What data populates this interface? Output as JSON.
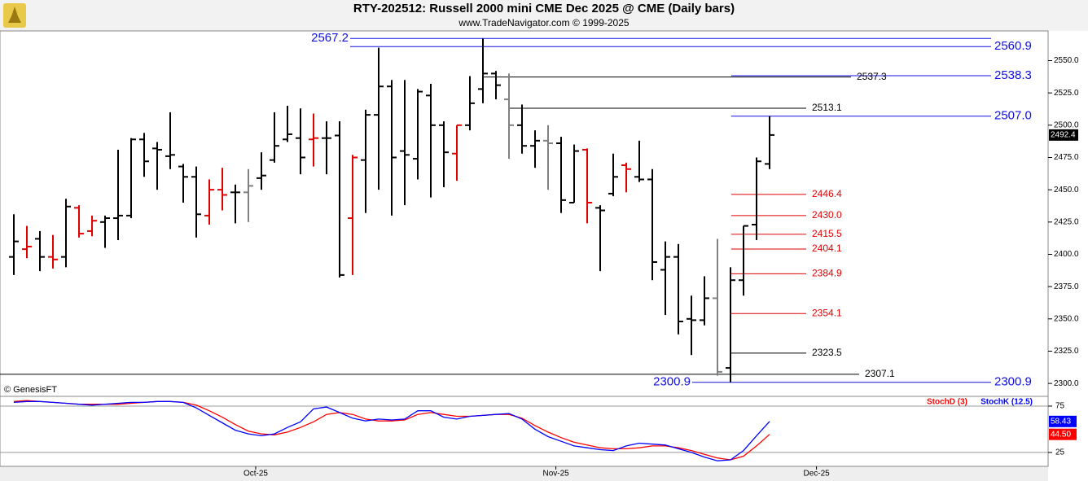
{
  "chart_data": [
    {
      "type": "ohlc",
      "title": "RTY-202512:  Russell 2000 mini CME Dec 2025 @ CME  (Daily bars)",
      "subtitle": "www.TradeNavigator.com © 1999-2025",
      "watermark": "© GenesisFT",
      "open": [
        2398,
        2404,
        2412,
        2398,
        2398,
        2436,
        2418,
        2425,
        2428,
        2430,
        2489,
        2482,
        2476,
        2468,
        2460,
        2430,
        2450,
        2448,
        2448,
        2459,
        2473,
        2489,
        2490,
        2489,
        2490,
        2492,
        2428,
        2473,
        2508,
        2530,
        2480,
        2474,
        2523,
        2500,
        2478,
        2500,
        2528,
        2540,
        2520,
        2500,
        2484,
        2488,
        2486,
        2440,
        2481,
        2436,
        2447,
        2469,
        2460,
        2458,
        2388,
        2398,
        2350,
        2349,
        2366,
        2312,
        2380,
        2423,
        2470
      ],
      "high": [
        2431,
        2422,
        2418,
        2415,
        2443,
        2438,
        2430,
        2430,
        2481,
        2490,
        2494,
        2487,
        2510,
        2470,
        2468,
        2458,
        2467,
        2454,
        2466,
        2479,
        2510,
        2515,
        2513,
        2509,
        2503,
        2503,
        2477,
        2512,
        2560,
        2535,
        2535,
        2528,
        2532,
        2503,
        2500,
        2538,
        2567,
        2542,
        2540,
        2516,
        2496,
        2500,
        2491,
        2485,
        2482,
        2438,
        2478,
        2471,
        2488,
        2466,
        2410,
        2408,
        2368,
        2383,
        2412,
        2390,
        2422,
        2475,
        2507
      ],
      "low": [
        2384,
        2397,
        2387,
        2389,
        2390,
        2413,
        2414,
        2405,
        2411,
        2428,
        2460,
        2450,
        2466,
        2440,
        2413,
        2423,
        2434,
        2424,
        2425,
        2450,
        2471,
        2487,
        2462,
        2468,
        2462,
        2382,
        2384,
        2432,
        2450,
        2430,
        2438,
        2458,
        2444,
        2452,
        2457,
        2496,
        2517,
        2520,
        2474,
        2478,
        2467,
        2450,
        2432,
        2440,
        2424,
        2387,
        2445,
        2448,
        2456,
        2380,
        2353,
        2338,
        2322,
        2345,
        2306,
        2300.9,
        2368,
        2411,
        2466
      ],
      "close": [
        2410,
        2406,
        2398,
        2396,
        2437,
        2416,
        2426,
        2428,
        2430,
        2489,
        2472,
        2481,
        2477,
        2460,
        2431,
        2450,
        2446,
        2448,
        2453,
        2461,
        2484,
        2493,
        2475,
        2490,
        2490,
        2384,
        2475,
        2508,
        2530,
        2475,
        2477,
        2526,
        2500,
        2479,
        2500,
        2517,
        2540,
        2531,
        2500,
        2484,
        2488,
        2486,
        2442,
        2480,
        2440,
        2434,
        2460,
        2466,
        2458,
        2394,
        2398,
        2348,
        2349,
        2366,
        2309,
        2380,
        2422,
        2472,
        2492.4
      ],
      "colors": [
        "#000000",
        "#e00000",
        "#000000",
        "#e00000",
        "#000000",
        "#e00000",
        "#e00000",
        "#000000",
        "#000000",
        "#000000",
        "#000000",
        "#000000",
        "#000000",
        "#000000",
        "#000000",
        "#e00000",
        "#e00000",
        "#000000",
        "#808080",
        "#000000",
        "#000000",
        "#000000",
        "#000000",
        "#e00000",
        "#000000",
        "#000000",
        "#e00000",
        "#000000",
        "#000000",
        "#000000",
        "#000000",
        "#000000",
        "#000000",
        "#000000",
        "#e00000",
        "#000000",
        "#000000",
        "#000000",
        "#808080",
        "#000000",
        "#000000",
        "#808080",
        "#000000",
        "#000000",
        "#e00000",
        "#000000",
        "#000000",
        "#e00000",
        "#000000",
        "#000000",
        "#000000",
        "#000000",
        "#000000",
        "#000000",
        "#808080",
        "#000000",
        "#000000",
        "#000000",
        "#000000"
      ],
      "levels": [
        {
          "value": 2567.2,
          "label": "2567.2",
          "color": "#1010e0"
        },
        {
          "value": 2560.9,
          "label": "2560.9",
          "color": "#1010e0"
        },
        {
          "value": 2538.3,
          "label": "2538.3",
          "color": "#1010e0"
        },
        {
          "value": 2537.3,
          "label": "2537.3",
          "color": "#000000"
        },
        {
          "value": 2513.1,
          "label": "2513.1",
          "color": "#000000"
        },
        {
          "value": 2507,
          "label": "2507.0",
          "color": "#1010e0"
        },
        {
          "value": 2446.4,
          "label": "2446.4",
          "color": "#e00000"
        },
        {
          "value": 2430,
          "label": "2430.0",
          "color": "#e00000"
        },
        {
          "value": 2415.5,
          "label": "2415.5",
          "color": "#e00000"
        },
        {
          "value": 2404.1,
          "label": "2404.1",
          "color": "#e00000"
        },
        {
          "value": 2384.9,
          "label": "2384.9",
          "color": "#e00000"
        },
        {
          "value": 2354.1,
          "label": "2354.1",
          "color": "#e00000"
        },
        {
          "value": 2323.5,
          "label": "2323.5",
          "color": "#000000"
        },
        {
          "value": 2307.1,
          "label": "2307.1",
          "color": "#000000"
        },
        {
          "value": 2300.9,
          "label": "2300.9",
          "color": "#1010e0"
        }
      ],
      "xlim": [
        -1.0625,
        79.375
      ],
      "xticks": [
        {
          "value": 18.56,
          "label": "Oct-25"
        },
        {
          "value": 41.6,
          "label": "Nov-25"
        },
        {
          "value": 61.6,
          "label": "Dec-25"
        }
      ],
      "ylim": [
        2290,
        2573
      ],
      "yticks": [
        {
          "value": 2300,
          "label": "2300.0"
        },
        {
          "value": 2325,
          "label": "2325.0"
        },
        {
          "value": 2350,
          "label": "2350.0"
        },
        {
          "value": 2375,
          "label": "2375.0"
        },
        {
          "value": 2400,
          "label": "2400.0"
        },
        {
          "value": 2425,
          "label": "2425.0"
        },
        {
          "value": 2450,
          "label": "2450.0"
        },
        {
          "value": 2475,
          "label": "2475.0"
        },
        {
          "value": 2500,
          "label": "2500.0"
        },
        {
          "value": 2525,
          "label": "2525.0"
        },
        {
          "value": 2550,
          "label": "2550.0"
        }
      ]
    },
    {
      "type": "line",
      "xlim": [
        -1.0625,
        79.375
      ],
      "ylim": [
        10,
        85.5
      ],
      "yticks": [
        25,
        75
      ],
      "series": [
        {
          "name": "StochD (3)",
          "color": "#ff0000",
          "values": [
            80,
            81,
            80,
            79,
            78,
            77,
            77,
            77,
            77,
            78,
            79,
            80,
            80,
            79,
            76,
            70,
            63,
            55,
            48,
            45,
            44,
            47,
            52,
            58,
            66,
            68,
            66,
            61,
            59,
            59,
            60,
            66,
            68,
            66,
            64,
            64,
            65,
            66,
            66,
            62,
            54,
            47,
            41,
            36,
            33,
            30,
            29,
            29,
            30,
            32,
            32,
            30,
            27,
            23,
            19,
            17,
            21,
            32,
            44.5
          ],
          "value_labels": [
            null,
            null,
            null,
            null,
            null,
            null,
            null,
            null,
            null,
            null,
            null,
            null,
            null,
            null,
            null,
            null,
            null,
            null,
            null,
            null,
            null,
            null,
            null,
            null,
            null,
            null,
            null,
            null,
            null,
            null,
            null,
            null,
            null,
            null,
            null,
            null,
            null,
            null,
            null,
            null,
            null,
            null,
            null,
            null,
            null,
            null,
            null,
            null,
            null,
            null,
            null,
            null,
            null,
            null,
            null,
            null,
            null,
            null,
            "44.50"
          ]
        },
        {
          "name": "StochK (12.5)",
          "color": "#0000ff",
          "values": [
            79,
            80,
            80,
            79,
            78,
            77,
            76,
            77,
            78,
            79,
            79,
            80,
            80,
            79,
            73,
            65,
            57,
            49,
            45,
            43,
            45,
            52,
            58,
            72,
            74,
            68,
            62,
            59,
            61,
            60,
            61,
            70,
            70,
            63,
            61,
            64,
            65,
            66,
            67,
            61,
            50,
            42,
            37,
            32,
            30,
            28,
            27,
            32,
            35,
            34,
            33,
            29,
            25,
            20,
            16,
            17,
            27,
            43,
            58.43
          ]
        }
      ]
    }
  ]
}
